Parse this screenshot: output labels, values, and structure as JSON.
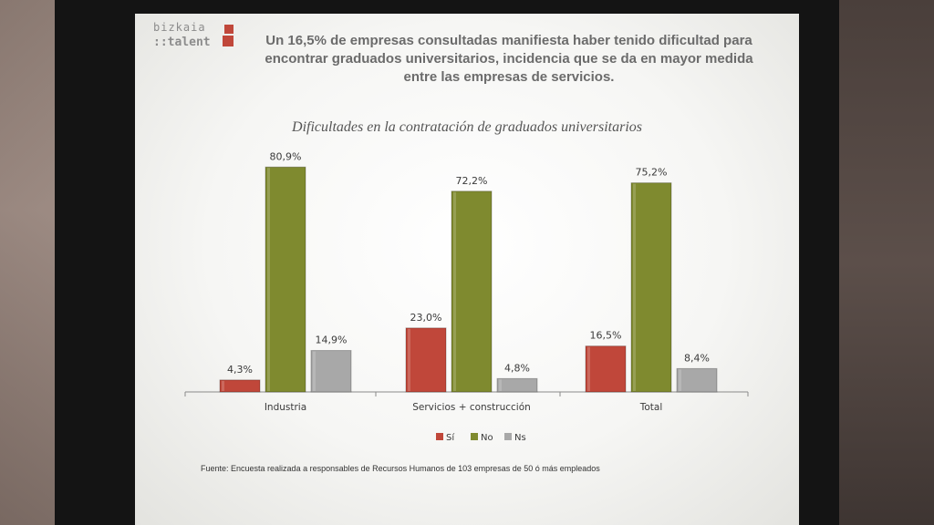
{
  "slide": {
    "logo_top": "bizkaia",
    "logo_bottom": "::talent",
    "headline_lines": [
      "Un 16,5% de empresas consultadas manifiesta haber tenido dificultad para",
      "encontrar graduados universitarios, incidencia que se da en mayor medida",
      "entre las empresas de servicios."
    ],
    "source": "Fuente: Encuesta realizada a responsables de Recursos Humanos de 103 empresas de 50 ó más empleados"
  },
  "chart_data": {
    "type": "bar",
    "title": "Dificultades en la contratación de graduados universitarios",
    "categories": [
      "Industria",
      "Servicios + construcción",
      "Total"
    ],
    "series": [
      {
        "name": "Sí",
        "values": [
          4.3,
          23.0,
          16.5
        ],
        "labels": [
          "4,3%",
          "23,0%",
          "16,5%"
        ],
        "color": "#c0473a"
      },
      {
        "name": "No",
        "values": [
          80.9,
          72.2,
          75.2
        ],
        "labels": [
          "80,9%",
          "72,2%",
          "75,2%"
        ],
        "color": "#7f8a2f"
      },
      {
        "name": "Ns",
        "values": [
          14.9,
          4.8,
          8.4
        ],
        "labels": [
          "14,9%",
          "4,8%",
          "8,4%"
        ],
        "color": "#a8a8a8"
      }
    ],
    "ylim": [
      0,
      100
    ],
    "grid": false,
    "legend_position": "bottom"
  }
}
